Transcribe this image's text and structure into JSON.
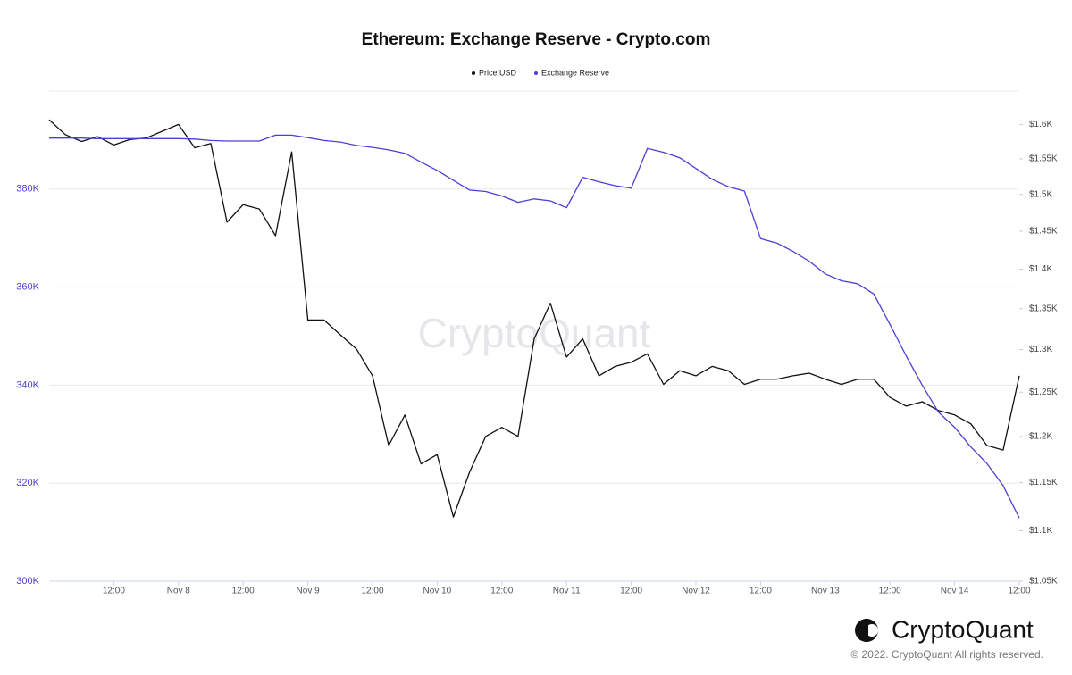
{
  "chart_data": {
    "type": "line",
    "title": "Ethereum: Exchange Reserve - Crypto.com",
    "watermark": "CryptoQuant",
    "logo_text": "CryptoQuant",
    "copyright": "© 2022. CryptoQuant All rights reserved.",
    "legend": "top",
    "grid": true,
    "y2log": true,
    "categories": [
      null,
      null,
      null,
      null,
      "12:00",
      null,
      null,
      null,
      "Nov 8",
      null,
      null,
      null,
      "12:00",
      null,
      null,
      null,
      "Nov 9",
      null,
      null,
      null,
      "12:00",
      null,
      null,
      null,
      "Nov 10",
      null,
      null,
      null,
      "12:00",
      null,
      null,
      null,
      "Nov 11",
      null,
      null,
      null,
      "12:00",
      null,
      null,
      null,
      "Nov 12",
      null,
      null,
      null,
      "12:00",
      null,
      null,
      null,
      "Nov 13",
      null,
      null,
      null,
      "12:00",
      null,
      null,
      null,
      "Nov 14",
      null,
      null,
      null,
      "12:00"
    ],
    "ylim": [
      300000,
      400000
    ],
    "yticks": [
      {
        "value": 300000,
        "label": "300K"
      },
      {
        "value": 320000,
        "label": "320K"
      },
      {
        "value": 340000,
        "label": "340K"
      },
      {
        "value": 360000,
        "label": "360K"
      },
      {
        "value": 380000,
        "label": "380K"
      }
    ],
    "y2lim": [
      1050,
      1650
    ],
    "y2ticks": [
      {
        "value": 1050,
        "label": "$1.05K"
      },
      {
        "value": 1100,
        "label": "$1.1K"
      },
      {
        "value": 1150,
        "label": "$1.15K"
      },
      {
        "value": 1200,
        "label": "$1.2K"
      },
      {
        "value": 1250,
        "label": "$1.25K"
      },
      {
        "value": 1300,
        "label": "$1.3K"
      },
      {
        "value": 1350,
        "label": "$1.35K"
      },
      {
        "value": 1400,
        "label": "$1.4K"
      },
      {
        "value": 1450,
        "label": "$1.45K"
      },
      {
        "value": 1500,
        "label": "$1.5K"
      },
      {
        "value": 1550,
        "label": "$1.55K"
      },
      {
        "value": 1600,
        "label": "$1.6K"
      }
    ],
    "series": [
      {
        "name": "Price USD",
        "color": "#111111",
        "axis": "y2",
        "values": [
          1607,
          1585,
          1575,
          1582,
          1570,
          1578,
          1580,
          1590,
          1600,
          1566,
          1572,
          1462,
          1486,
          1480,
          1444,
          1560,
          1336,
          1336,
          1318,
          1301,
          1269,
          1190,
          1224,
          1170,
          1180,
          1114,
          1161,
          1200,
          1210,
          1200,
          1313,
          1357,
          1291,
          1313,
          1269,
          1280,
          1285,
          1295,
          1259,
          1275,
          1269,
          1280,
          1275,
          1259,
          1265,
          1265,
          1269,
          1272,
          1265,
          1259,
          1265,
          1265,
          1244,
          1234,
          1239,
          1229,
          1224,
          1214,
          1190,
          1185,
          1269
        ]
      },
      {
        "name": "Exchange Reserve",
        "color": "#4b3fd6",
        "axis": "y",
        "values": [
          390400,
          390400,
          390400,
          390300,
          390300,
          390300,
          390300,
          390300,
          390300,
          390200,
          389900,
          389800,
          389800,
          389800,
          391000,
          391000,
          390500,
          389900,
          389600,
          388900,
          388500,
          388000,
          387300,
          385500,
          383800,
          381800,
          379800,
          379500,
          378600,
          377300,
          378000,
          377600,
          376200,
          382400,
          381500,
          380700,
          380200,
          388300,
          387500,
          386400,
          384200,
          382000,
          380500,
          379600,
          369900,
          369000,
          367300,
          365300,
          362700,
          361300,
          360700,
          358600,
          352400,
          346000,
          340000,
          334500,
          331400,
          327400,
          324000,
          319500,
          312900
        ]
      }
    ]
  }
}
